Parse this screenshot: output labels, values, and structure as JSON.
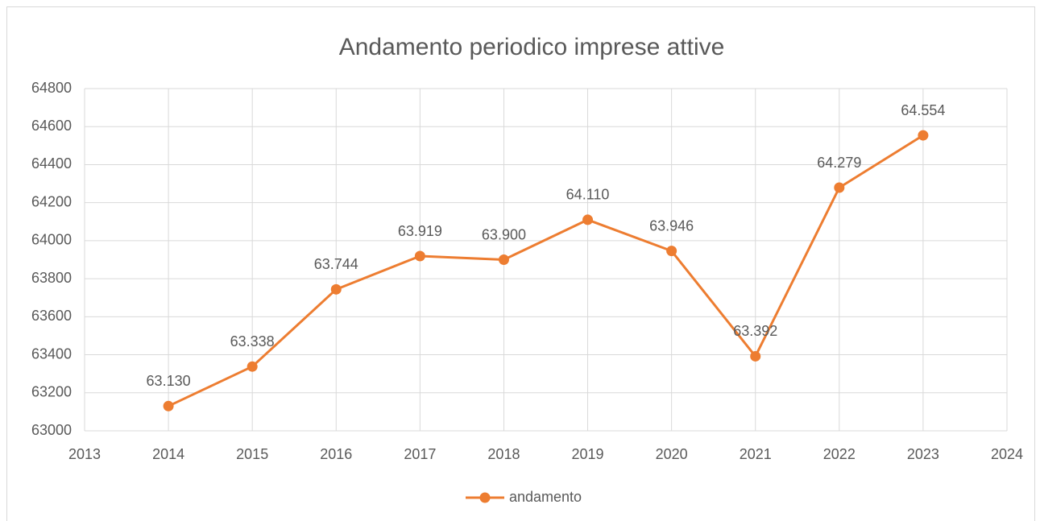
{
  "chart_data": {
    "type": "line",
    "title": "Andamento periodico imprese attive",
    "x": [
      2014,
      2015,
      2016,
      2017,
      2018,
      2019,
      2020,
      2021,
      2022,
      2023
    ],
    "series": [
      {
        "name": "andamento",
        "color": "#ED7D31",
        "values": [
          63130,
          63338,
          63744,
          63919,
          63900,
          64110,
          63946,
          63392,
          64279,
          64554
        ],
        "value_labels": [
          "63.130",
          "63.338",
          "63.744",
          "63.919",
          "63.900",
          "64.110",
          "63.946",
          "63.392",
          "64.279",
          "64.554"
        ]
      }
    ],
    "xlim": [
      2013,
      2024
    ],
    "xticks": [
      2013,
      2014,
      2015,
      2016,
      2017,
      2018,
      2019,
      2020,
      2021,
      2022,
      2023,
      2024
    ],
    "ylim": [
      63000,
      64800
    ],
    "yticks": [
      63000,
      63200,
      63400,
      63600,
      63800,
      64000,
      64200,
      64400,
      64600,
      64800
    ],
    "grid": true,
    "legend": "bottom"
  }
}
